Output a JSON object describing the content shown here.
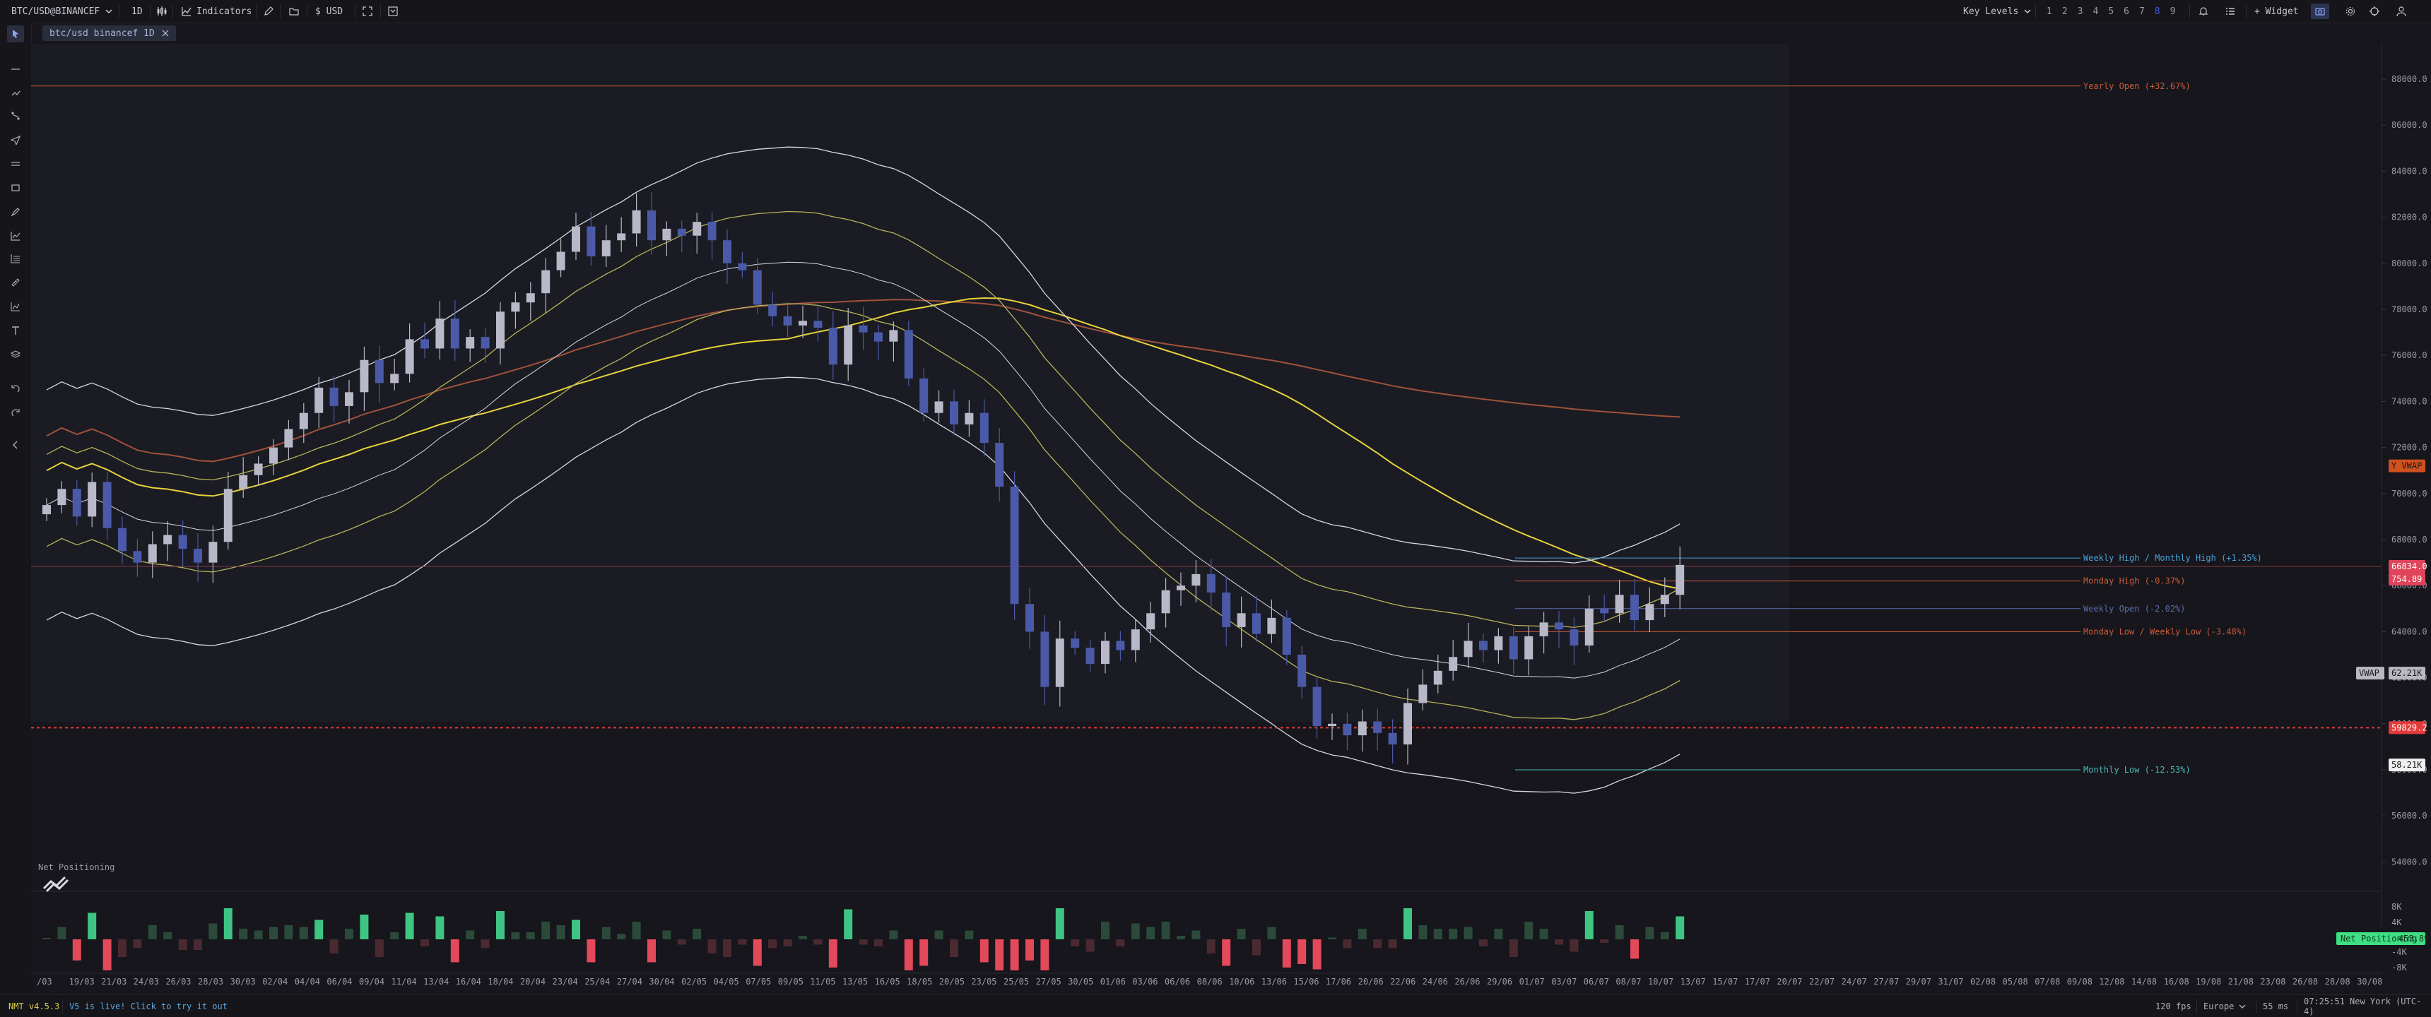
{
  "toolbar": {
    "symbol": "BTC/USD@BINANCEF",
    "timeframe": "1D",
    "indicators_label": "Indicators",
    "currency": "$ USD",
    "key_levels": "Key Levels",
    "layout_numbers": [
      "1",
      "2",
      "3",
      "4",
      "5",
      "6",
      "7",
      "8",
      "9"
    ],
    "selected_layout": "8",
    "widget_label": "+ Widget"
  },
  "tab": {
    "label": "btc/usd binancef 1D"
  },
  "chart_data": [
    {
      "type": "candlestick",
      "title": "",
      "price_ticks": [
        "88000.0",
        "86000.0",
        "84000.0",
        "82000.0",
        "80000.0",
        "78000.0",
        "76000.0",
        "74000.0",
        "72000.0",
        "70000.0",
        "68000.0",
        "66000.0",
        "64000.0",
        "62000.0",
        "60000.0",
        "58000.0",
        "56000.0",
        "54000.0"
      ],
      "ylim": [
        53400,
        89400
      ],
      "date_ticks": [
        "/03",
        "19/03",
        "21/03",
        "24/03",
        "26/03",
        "28/03",
        "30/03",
        "02/04",
        "04/04",
        "06/04",
        "09/04",
        "11/04",
        "13/04",
        "16/04",
        "18/04",
        "20/04",
        "23/04",
        "25/04",
        "27/04",
        "30/04",
        "02/05",
        "04/05",
        "07/05",
        "09/05",
        "11/05",
        "13/05",
        "16/05",
        "18/05",
        "20/05",
        "23/05",
        "25/05",
        "27/05",
        "30/05",
        "01/06",
        "03/06",
        "06/06",
        "08/06",
        "10/06",
        "13/06",
        "15/06",
        "17/06",
        "20/06",
        "22/06",
        "24/06",
        "26/06",
        "29/06",
        "01/07",
        "03/07",
        "06/07",
        "08/07",
        "10/07",
        "13/07",
        "15/07",
        "17/07",
        "20/07",
        "22/07",
        "24/07",
        "27/07",
        "29/07",
        "31/07",
        "02/08",
        "05/08",
        "07/08",
        "09/08",
        "12/08",
        "14/08",
        "16/08",
        "19/08",
        "21/08",
        "23/08",
        "26/08",
        "28/08",
        "30/08"
      ],
      "close_estimates": [
        69500,
        70200,
        69000,
        70500,
        68500,
        67500,
        67000,
        67800,
        68200,
        67600,
        67000,
        67900,
        70200,
        70800,
        71300,
        72000,
        72800,
        73500,
        74600,
        73800,
        74400,
        75800,
        74800,
        75200,
        76700,
        76300,
        77600,
        76300,
        76800,
        76300,
        77900,
        78300,
        78700,
        79700,
        80500,
        81600,
        80300,
        81000,
        81300,
        82300,
        81000,
        81500,
        81200,
        81800,
        81000,
        80000,
        79700,
        78200,
        77700,
        77300,
        77500,
        77200,
        75600,
        77300,
        77000,
        76600,
        77100,
        75000,
        73500,
        74000,
        73000,
        73500,
        72200,
        70300,
        65200,
        64000,
        61600,
        63700,
        63300,
        62600,
        63600,
        63200,
        64100,
        64800,
        65800,
        66000,
        66500,
        65700,
        64200,
        64800,
        63900,
        64600,
        63000,
        61600,
        59900,
        60000,
        59500,
        60100,
        59600,
        59100,
        60900,
        61700,
        62300,
        62900,
        63600,
        63200,
        63800,
        62800,
        63800,
        64400,
        64100,
        63400,
        65000,
        64800,
        65600,
        64500,
        65200,
        65600,
        66900
      ]
    },
    {
      "type": "bar",
      "title": "Net Positioning",
      "yticks": [
        "8K",
        "4K",
        "-4K",
        "-8K"
      ],
      "last_value": "453.89"
    }
  ],
  "levels": [
    {
      "label": "Yearly Open (+32.67%)",
      "price": 87700,
      "color": "#c85a3a"
    },
    {
      "label": "Weekly High / Monthly High (+1.35%)",
      "price": 67200,
      "color": "#4aa0d8"
    },
    {
      "label": "Monday High (-0.37%)",
      "price": 66200,
      "color": "#c85a3a"
    },
    {
      "label": "Weekly Open (-2.02%)",
      "price": 65000,
      "color": "#5a6aa8"
    },
    {
      "label": "Monday Low / Weekly Low (-3.48%)",
      "price": 64000,
      "color": "#c85a3a"
    },
    {
      "label": "Monthly Low (-12.53%)",
      "price": 58000,
      "color": "#4ab8b8"
    }
  ],
  "price_badges": {
    "y_vwap": "Y VWAP",
    "current_price": "66834.0",
    "current_sub": "754.89",
    "vwap_label": "VWAP",
    "vwap_value": "62.21K",
    "red_line_value": "59829.2",
    "low_badge": "58.21K",
    "net_pos_label": "Net Positioning",
    "net_pos_value": "453.89"
  },
  "status": {
    "version": "NMT v4.5.3",
    "announcement": "V5 is live! Click to try it out",
    "fps": "120 fps",
    "region": "Europe",
    "latency": "55 ms",
    "clock": "07:25:51 New York (UTC-4)"
  }
}
